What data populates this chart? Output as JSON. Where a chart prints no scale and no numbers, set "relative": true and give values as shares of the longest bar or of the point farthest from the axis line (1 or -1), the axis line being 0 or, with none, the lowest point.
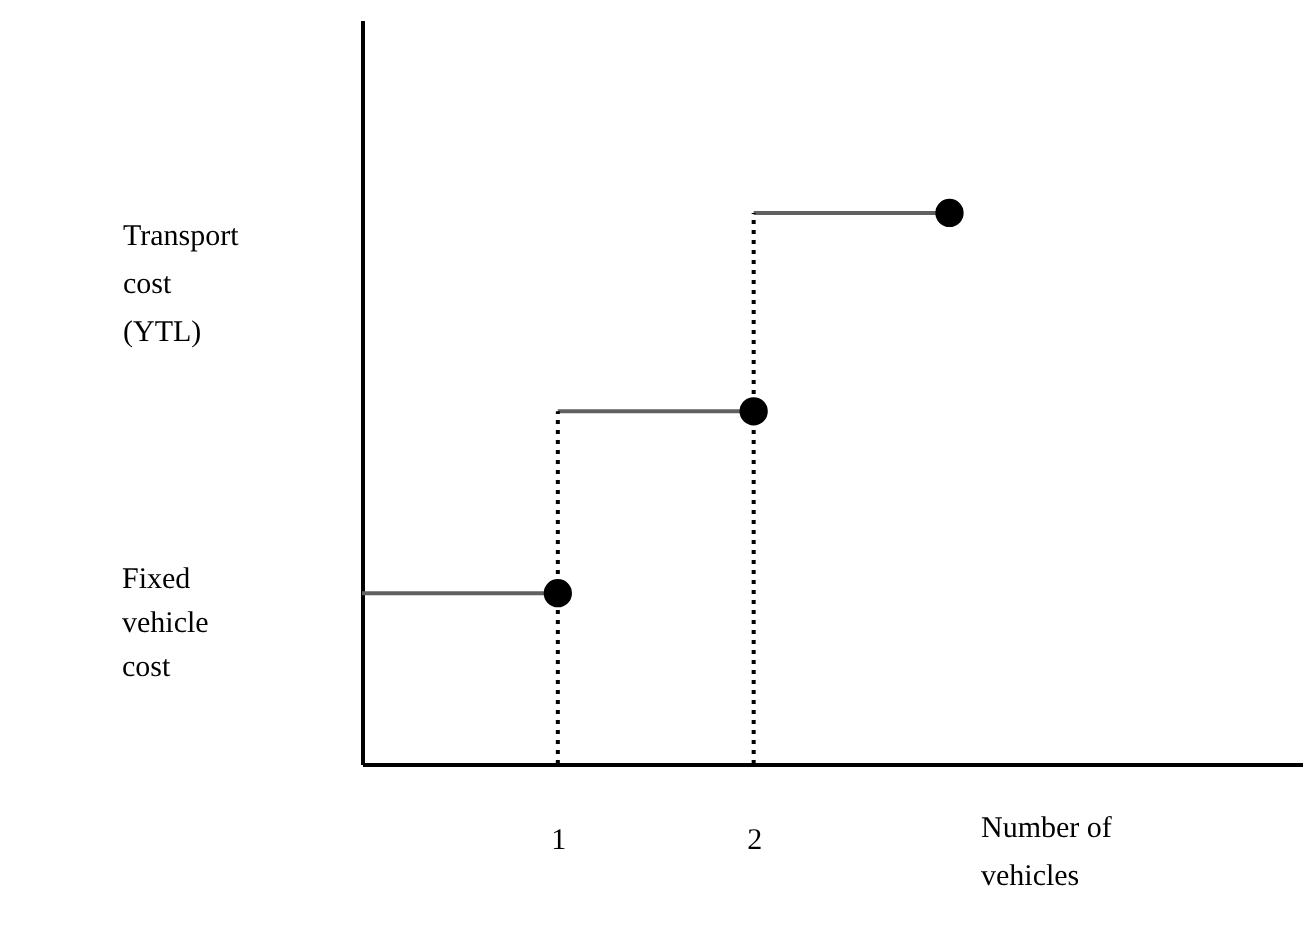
{
  "chart_data": {
    "type": "line",
    "relative": true,
    "xlabel": "Number of vehicles",
    "ylabel": "Transport cost (YTL)",
    "xlim": [
      0,
      4.8
    ],
    "xticks": [
      1,
      2
    ],
    "tick_labels": "x",
    "grid": false,
    "annotations": [
      "Fixed vehicle cost"
    ],
    "series": [
      {
        "color": "#606060",
        "line_style": "solid",
        "marker": "none",
        "x": [
          0,
          1
        ],
        "values": [
          0.31,
          0.31
        ]
      },
      {
        "color": "#606060",
        "line_style": "solid",
        "marker": "none",
        "x": [
          1,
          2
        ],
        "values": [
          0.64,
          0.64
        ]
      },
      {
        "color": "#606060",
        "line_style": "solid",
        "marker": "none",
        "x": [
          2,
          3
        ],
        "values": [
          1,
          1
        ]
      },
      {
        "color": "#000000",
        "line_style": "dotted",
        "marker": "none",
        "x": [
          1,
          1
        ],
        "values": [
          0,
          0.64
        ]
      },
      {
        "color": "#000000",
        "line_style": "dotted",
        "marker": "none",
        "x": [
          2,
          2
        ],
        "values": [
          0,
          1
        ]
      },
      {
        "type": "scatter",
        "color": "#000000",
        "marker": "circle",
        "x": [
          1,
          2,
          3
        ],
        "values": [
          0.31,
          0.64,
          1
        ]
      }
    ]
  }
}
